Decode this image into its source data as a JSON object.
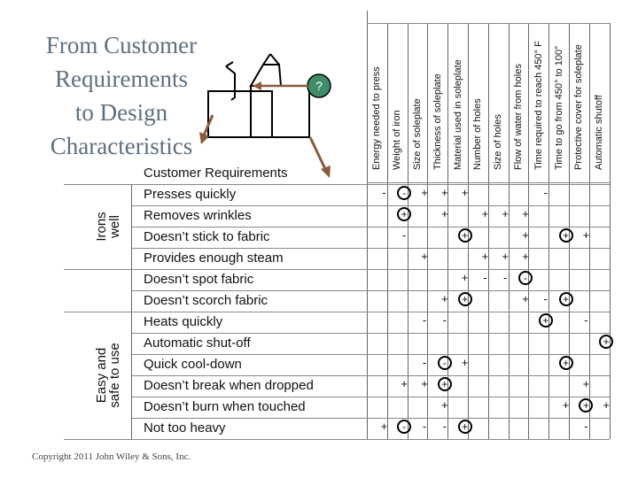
{
  "title": {
    "line1": "From Customer",
    "line2": "Requirements",
    "line3": "to Design",
    "line4": "Characteristics"
  },
  "customer_requirements_header": "Customer Requirements",
  "groups": [
    {
      "label_line1": "Irons",
      "label_line2": "well"
    },
    {
      "label_line1": "Easy and",
      "label_line2": "safe to use"
    }
  ],
  "design_characteristics": [
    "Energy needed to press",
    "Weight of iron",
    "Size of soleplate",
    "Thickness of soleplate",
    "Material used in soleplate",
    "Number of holes",
    "Size of holes",
    "Flow of water from holes",
    "Time required to reach 450° F",
    "Time  to go from 450° to 100°",
    "Protective cover for soleplate",
    "Automatic shutoff"
  ],
  "requirements": [
    {
      "label": "Presses quickly",
      "cells": [
        "-",
        "sn",
        "+",
        "+",
        "+",
        "",
        "",
        "",
        "-",
        "",
        "",
        ""
      ]
    },
    {
      "label": "Removes wrinkles",
      "cells": [
        "",
        "sp",
        "",
        "+",
        "",
        "+",
        "+",
        "+",
        "",
        "",
        "",
        ""
      ]
    },
    {
      "label": "Doesn’t stick to fabric",
      "cells": [
        "",
        "-",
        "",
        "",
        "sp",
        "",
        "",
        "+",
        "",
        "sp",
        "+",
        ""
      ]
    },
    {
      "label": "Provides enough steam",
      "cells": [
        "",
        "",
        "+",
        "",
        "",
        "+",
        "+",
        "+",
        "",
        "",
        "",
        ""
      ]
    },
    {
      "label": "Doesn’t spot fabric",
      "cells": [
        "",
        "",
        "",
        "",
        "+",
        "-",
        "-",
        "sn",
        "",
        "",
        "",
        ""
      ]
    },
    {
      "label": "Doesn’t scorch fabric",
      "cells": [
        "",
        "",
        "",
        "+",
        "sp",
        "",
        "",
        "+",
        "-",
        "sp",
        "",
        ""
      ]
    },
    {
      "label": "Heats quickly",
      "cells": [
        "",
        "",
        "-",
        "-",
        "",
        "",
        "",
        "",
        "sp",
        "",
        "-",
        ""
      ]
    },
    {
      "label": "Automatic shut-off",
      "cells": [
        "",
        "",
        "",
        "",
        "",
        "",
        "",
        "",
        "",
        "",
        "",
        "sp"
      ]
    },
    {
      "label": "Quick cool-down",
      "cells": [
        "",
        "",
        "-",
        "sn",
        "+",
        "",
        "",
        "",
        "",
        "sp",
        "",
        ""
      ]
    },
    {
      "label": "Doesn’t break when dropped",
      "cells": [
        "",
        "+",
        "+",
        "sp",
        "",
        "",
        "",
        "",
        "",
        "",
        "+",
        ""
      ]
    },
    {
      "label": "Doesn’t burn when touched",
      "cells": [
        "",
        "",
        "",
        "+",
        "",
        "",
        "",
        "",
        "",
        "+",
        "sp",
        "+"
      ]
    },
    {
      "label": "Not too heavy",
      "cells": [
        "+",
        "sn",
        "-",
        "-",
        "sp",
        "",
        "",
        "",
        "",
        "",
        "-",
        ""
      ]
    }
  ],
  "illustration_symbol": "?",
  "copyright": "Copyright 2011 John Wiley & Sons, Inc."
}
